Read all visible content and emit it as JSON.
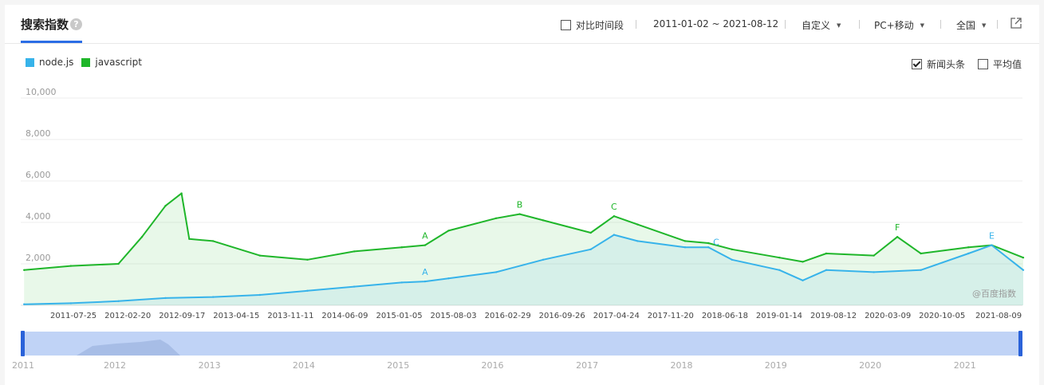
{
  "header": {
    "title": "搜索指数",
    "help_icon": "question-icon",
    "compare_label": "对比时间段",
    "date_range": "2011-01-02 ~ 2021-08-12",
    "custom_label": "自定义",
    "device_label": "PC+移动",
    "region_label": "全国",
    "share_icon": "external-link-icon"
  },
  "options": {
    "news_label": "新闻头条",
    "news_checked": true,
    "avg_label": "平均值",
    "avg_checked": false
  },
  "watermark": "@百度指数",
  "colors": {
    "nodejs": "#37b3ea",
    "javascript": "#1fb62a",
    "slider": "#c0d3f6",
    "slider_handle": "#2a62d9"
  },
  "chart_data": {
    "type": "line",
    "series": [
      {
        "name": "node.js",
        "color": "#37b3ea",
        "x": [
          "2011-01",
          "2011-07",
          "2012-01",
          "2012-07",
          "2013-01",
          "2013-07",
          "2014-01",
          "2014-07",
          "2015-01",
          "2015-04",
          "2015-07",
          "2016-01",
          "2016-07",
          "2017-01",
          "2017-04",
          "2017-07",
          "2018-01",
          "2018-04",
          "2018-07",
          "2019-01",
          "2019-04",
          "2019-07",
          "2020-01",
          "2020-07",
          "2021-01",
          "2021-04",
          "2021-08"
        ],
        "values": [
          50,
          100,
          200,
          350,
          400,
          500,
          700,
          900,
          1100,
          1150,
          1300,
          1600,
          2200,
          2700,
          3400,
          3100,
          2800,
          2800,
          2200,
          1700,
          1200,
          1700,
          1600,
          1700,
          2500,
          2900,
          1700
        ]
      },
      {
        "name": "javascript",
        "color": "#1fb62a",
        "x": [
          "2011-01",
          "2011-07",
          "2012-01",
          "2012-04",
          "2012-07",
          "2012-09",
          "2012-10",
          "2013-01",
          "2013-07",
          "2014-01",
          "2014-07",
          "2015-01",
          "2015-04",
          "2015-07",
          "2016-01",
          "2016-04",
          "2016-07",
          "2017-01",
          "2017-04",
          "2017-07",
          "2018-01",
          "2018-04",
          "2018-07",
          "2019-01",
          "2019-04",
          "2019-07",
          "2020-01",
          "2020-04",
          "2020-07",
          "2021-01",
          "2021-04",
          "2021-08"
        ],
        "values": [
          1700,
          1900,
          2000,
          3300,
          4800,
          5400,
          3200,
          3100,
          2400,
          2200,
          2600,
          2800,
          2900,
          3600,
          4200,
          4400,
          4100,
          3500,
          4300,
          3900,
          3100,
          3000,
          2700,
          2300,
          2100,
          2500,
          2400,
          3300,
          2500,
          2800,
          2900,
          2300
        ]
      }
    ],
    "yticks": [
      "10,000",
      "8,000",
      "6,000",
      "4,000",
      "2,000"
    ],
    "ylim": [
      0,
      10000
    ],
    "xtick_labels": [
      "2011-07-25",
      "2012-02-20",
      "2012-09-17",
      "2013-04-15",
      "2013-11-11",
      "2014-06-09",
      "2015-01-05",
      "2015-08-03",
      "2016-02-29",
      "2016-09-26",
      "2017-04-24",
      "2017-11-20",
      "2018-06-18",
      "2019-01-14",
      "2019-08-12",
      "2020-03-09",
      "2020-10-05",
      "2021-08-09"
    ],
    "year_labels": [
      "2011",
      "2012",
      "2013",
      "2014",
      "2015",
      "2016",
      "2017",
      "2018",
      "2019",
      "2020",
      "2021"
    ],
    "annotations": [
      {
        "letter": "A",
        "series": "javascript",
        "date": "2015-04"
      },
      {
        "letter": "B",
        "series": "javascript",
        "date": "2016-04"
      },
      {
        "letter": "C",
        "series": "javascript",
        "date": "2017-04"
      },
      {
        "letter": "F",
        "series": "javascript",
        "date": "2020-04"
      },
      {
        "letter": "A",
        "series": "node.js",
        "date": "2015-04"
      },
      {
        "letter": "C",
        "series": "node.js",
        "date": "2018-05"
      },
      {
        "letter": "E",
        "series": "node.js",
        "date": "2021-04"
      }
    ],
    "grid": true,
    "legend_position": "top-left"
  }
}
